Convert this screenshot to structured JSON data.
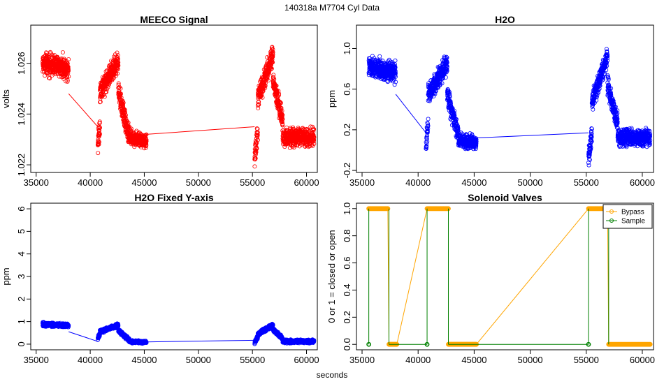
{
  "page": {
    "title": "140318a   M7704   Cyl Data",
    "x_axis_label": "seconds"
  },
  "chart_data": [
    {
      "id": "meeco",
      "type": "scatter",
      "title": "MEECO Signal",
      "xlabel": "",
      "ylabel": "volts",
      "color": "#ff0000",
      "xlim": [
        34500,
        61000
      ],
      "ylim": [
        1.0217,
        1.0275
      ],
      "xticks": [
        35000,
        40000,
        45000,
        50000,
        55000,
        60000
      ],
      "yticks": [
        1.022,
        1.024,
        1.026
      ],
      "ytick_labels": [
        "1.022",
        "1.024",
        "1.026"
      ],
      "segments": [
        {
          "x0": 35600,
          "x1": 38000,
          "center": 1.0259,
          "spread": 0.0006,
          "trend": -0.0002
        },
        {
          "x0": 40700,
          "x1": 40900,
          "center": 1.0232,
          "spread": 0.0006,
          "trend": 0.0008
        },
        {
          "x0": 40900,
          "x1": 42600,
          "center": 1.0255,
          "spread": 0.0006,
          "trend": 0.0012
        },
        {
          "x0": 42600,
          "x1": 43600,
          "center": 1.024,
          "spread": 0.0006,
          "trend": -0.0018
        },
        {
          "x0": 43600,
          "x1": 45200,
          "center": 1.023,
          "spread": 0.0004,
          "trend": -0.0002
        },
        {
          "x0": 55200,
          "x1": 55500,
          "center": 1.0228,
          "spread": 0.0006,
          "trend": 0.001
        },
        {
          "x0": 55500,
          "x1": 56900,
          "center": 1.0255,
          "spread": 0.0006,
          "trend": 0.0018
        },
        {
          "x0": 56900,
          "x1": 57800,
          "center": 1.0245,
          "spread": 0.0006,
          "trend": -0.0016
        },
        {
          "x0": 57800,
          "x1": 60700,
          "center": 1.0231,
          "spread": 0.0005,
          "trend": 0.0
        }
      ],
      "connectors": [
        {
          "x": [
            38000,
            40700
          ],
          "y": [
            1.0248,
            1.0235
          ]
        },
        {
          "x": [
            45200,
            55200
          ],
          "y": [
            1.0232,
            1.0235
          ]
        }
      ]
    },
    {
      "id": "h2o",
      "type": "scatter",
      "title": "H2O",
      "xlabel": "",
      "ylabel": "ppm",
      "color": "#0000ff",
      "xlim": [
        34500,
        61000
      ],
      "ylim": [
        -0.22,
        1.23
      ],
      "xticks": [
        35000,
        40000,
        45000,
        50000,
        55000,
        60000
      ],
      "yticks": [
        -0.2,
        0.2,
        0.6,
        1.0
      ],
      "ytick_labels": [
        "-0.2",
        "0.2",
        "0.6",
        "1.0"
      ],
      "segments": [
        {
          "x0": 35600,
          "x1": 38000,
          "center": 0.79,
          "spread": 0.14,
          "trend": -0.05
        },
        {
          "x0": 40700,
          "x1": 40900,
          "center": 0.15,
          "spread": 0.14,
          "trend": 0.2
        },
        {
          "x0": 40900,
          "x1": 42600,
          "center": 0.7,
          "spread": 0.14,
          "trend": 0.3
        },
        {
          "x0": 42600,
          "x1": 43600,
          "center": 0.35,
          "spread": 0.14,
          "trend": -0.4
        },
        {
          "x0": 43600,
          "x1": 45200,
          "center": 0.09,
          "spread": 0.1,
          "trend": -0.03
        },
        {
          "x0": 55200,
          "x1": 55500,
          "center": 0.05,
          "spread": 0.14,
          "trend": 0.25
        },
        {
          "x0": 55500,
          "x1": 56900,
          "center": 0.7,
          "spread": 0.14,
          "trend": 0.45
        },
        {
          "x0": 56900,
          "x1": 57800,
          "center": 0.45,
          "spread": 0.14,
          "trend": -0.4
        },
        {
          "x0": 57800,
          "x1": 60700,
          "center": 0.12,
          "spread": 0.12,
          "trend": 0.0
        }
      ],
      "connectors": [
        {
          "x": [
            38000,
            40700
          ],
          "y": [
            0.55,
            0.17
          ]
        },
        {
          "x": [
            45200,
            55200
          ],
          "y": [
            0.12,
            0.17
          ]
        }
      ]
    },
    {
      "id": "h2o-fixed",
      "type": "scatter",
      "title": "H2O Fixed Y-axis",
      "xlabel": "",
      "ylabel": "ppm",
      "color": "#0000ff",
      "xlim": [
        34500,
        61000
      ],
      "ylim": [
        -0.25,
        6.25
      ],
      "xticks": [
        35000,
        40000,
        45000,
        50000,
        55000,
        60000
      ],
      "yticks": [
        0,
        1,
        2,
        3,
        4,
        5,
        6
      ],
      "ytick_labels": [
        "0",
        "1",
        "2",
        "3",
        "4",
        "5",
        "6"
      ],
      "segments": [
        {
          "x0": 35600,
          "x1": 38000,
          "center": 0.85,
          "spread": 0.12,
          "trend": -0.05
        },
        {
          "x0": 40700,
          "x1": 40900,
          "center": 0.35,
          "spread": 0.12,
          "trend": 0.2
        },
        {
          "x0": 40900,
          "x1": 42600,
          "center": 0.7,
          "spread": 0.12,
          "trend": 0.3
        },
        {
          "x0": 42600,
          "x1": 43600,
          "center": 0.4,
          "spread": 0.12,
          "trend": -0.4
        },
        {
          "x0": 43600,
          "x1": 45200,
          "center": 0.1,
          "spread": 0.08,
          "trend": -0.03
        },
        {
          "x0": 55200,
          "x1": 55500,
          "center": 0.2,
          "spread": 0.12,
          "trend": 0.25
        },
        {
          "x0": 55500,
          "x1": 56900,
          "center": 0.65,
          "spread": 0.12,
          "trend": 0.4
        },
        {
          "x0": 56900,
          "x1": 57800,
          "center": 0.45,
          "spread": 0.12,
          "trend": -0.4
        },
        {
          "x0": 57800,
          "x1": 60700,
          "center": 0.12,
          "spread": 0.1,
          "trend": 0.0
        }
      ],
      "connectors": [
        {
          "x": [
            38000,
            40700
          ],
          "y": [
            0.55,
            0.12
          ]
        },
        {
          "x": [
            45200,
            55200
          ],
          "y": [
            0.1,
            0.17
          ]
        }
      ]
    },
    {
      "id": "valves",
      "type": "line",
      "title": "Solenoid Valves",
      "xlabel": "",
      "ylabel": "0 or 1 = closed or open",
      "xlim": [
        34500,
        61000
      ],
      "ylim": [
        -0.04,
        1.04
      ],
      "xticks": [
        35000,
        40000,
        45000,
        50000,
        55000,
        60000
      ],
      "yticks": [
        0.0,
        0.2,
        0.4,
        0.6,
        0.8,
        1.0
      ],
      "ytick_labels": [
        "0.0",
        "0.2",
        "0.4",
        "0.6",
        "0.8",
        "1.0"
      ],
      "legend_position": "top-right",
      "series": [
        {
          "name": "Bypass",
          "color": "#ffa500",
          "segments": [
            {
              "x": [
                35600,
                37300
              ],
              "y": [
                1,
                1
              ]
            },
            {
              "x": [
                37400,
                38100
              ],
              "y": [
                0,
                0
              ]
            },
            {
              "x": [
                40800,
                42700
              ],
              "y": [
                1,
                1
              ]
            },
            {
              "x": [
                42700,
                45200
              ],
              "y": [
                0,
                0
              ]
            },
            {
              "x": [
                55200,
                56900
              ],
              "y": [
                1,
                1
              ]
            },
            {
              "x": [
                57000,
                60700
              ],
              "y": [
                0,
                0
              ]
            }
          ],
          "connectors": [
            {
              "x": [
                37300,
                37400
              ],
              "y": [
                1,
                0
              ]
            },
            {
              "x": [
                38100,
                40800
              ],
              "y": [
                0,
                1
              ]
            },
            {
              "x": [
                42700,
                42700
              ],
              "y": [
                1,
                0
              ]
            },
            {
              "x": [
                45200,
                55200
              ],
              "y": [
                0,
                1
              ]
            },
            {
              "x": [
                56900,
                57000
              ],
              "y": [
                1,
                0
              ]
            }
          ]
        },
        {
          "name": "Sample",
          "color": "#008000",
          "points": [
            {
              "x": 35600,
              "y": 0
            },
            {
              "x": 40800,
              "y": 0
            },
            {
              "x": 55200,
              "y": 0
            }
          ],
          "connectors": [
            {
              "x": [
                35600,
                35600
              ],
              "y": [
                0,
                1
              ]
            },
            {
              "x": [
                37400,
                37400
              ],
              "y": [
                1,
                0
              ]
            },
            {
              "x": [
                37400,
                40800
              ],
              "y": [
                0,
                0
              ]
            },
            {
              "x": [
                40800,
                40800
              ],
              "y": [
                0,
                1
              ]
            },
            {
              "x": [
                42700,
                42700
              ],
              "y": [
                1,
                0
              ]
            },
            {
              "x": [
                42700,
                55200
              ],
              "y": [
                0,
                0
              ]
            },
            {
              "x": [
                55200,
                55200
              ],
              "y": [
                0,
                1
              ]
            },
            {
              "x": [
                57000,
                57000
              ],
              "y": [
                1,
                0
              ]
            }
          ]
        }
      ]
    }
  ]
}
